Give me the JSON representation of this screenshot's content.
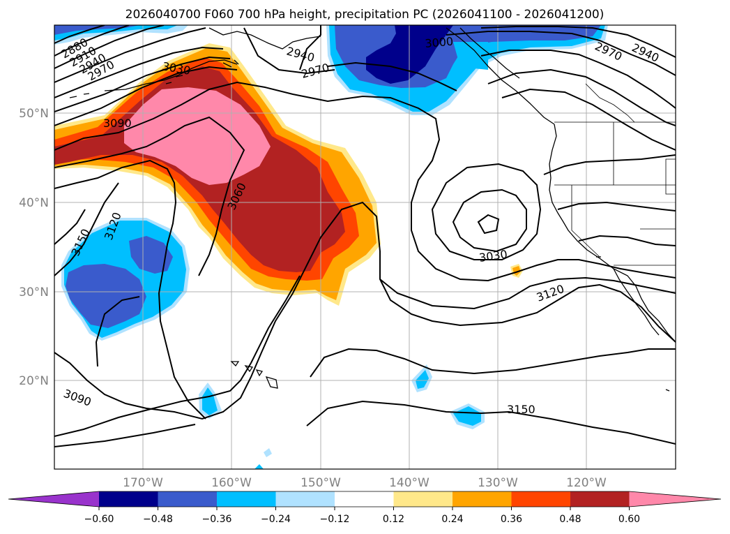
{
  "title": "2026040700 F060 700 hPa height, precipitation PC (2026041100 - 2026041200)",
  "lon_labels": [
    "170°W",
    "160°W",
    "150°W",
    "140°W",
    "130°W",
    "120°W"
  ],
  "lat_labels": [
    "50°N",
    "40°N",
    "30°N",
    "20°N"
  ],
  "colorbar": {
    "ticks": [
      "−0.60",
      "−0.48",
      "−0.36",
      "−0.24",
      "−0.12",
      "0.12",
      "0.24",
      "0.36",
      "0.48",
      "0.60"
    ],
    "colors": [
      "#9933cc",
      "#00008b",
      "#3a5bcc",
      "#00bfff",
      "#b0e2ff",
      "#ffffff",
      "#ffe88a",
      "#ffa500",
      "#ff4500",
      "#b22222",
      "#ff88aa"
    ]
  },
  "contour_labels": [
    "2880",
    "2910",
    "2940",
    "2970",
    "3030",
    "3090",
    "3060",
    "3120",
    "3150",
    "2940",
    "2970",
    "3000",
    "2970",
    "2940",
    "3030",
    "3120",
    "3150",
    "3090"
  ],
  "contours": {
    "heights": [
      2880,
      2910,
      2940,
      2970,
      3000,
      3030,
      3060,
      3090,
      3120,
      3150
    ]
  }
}
